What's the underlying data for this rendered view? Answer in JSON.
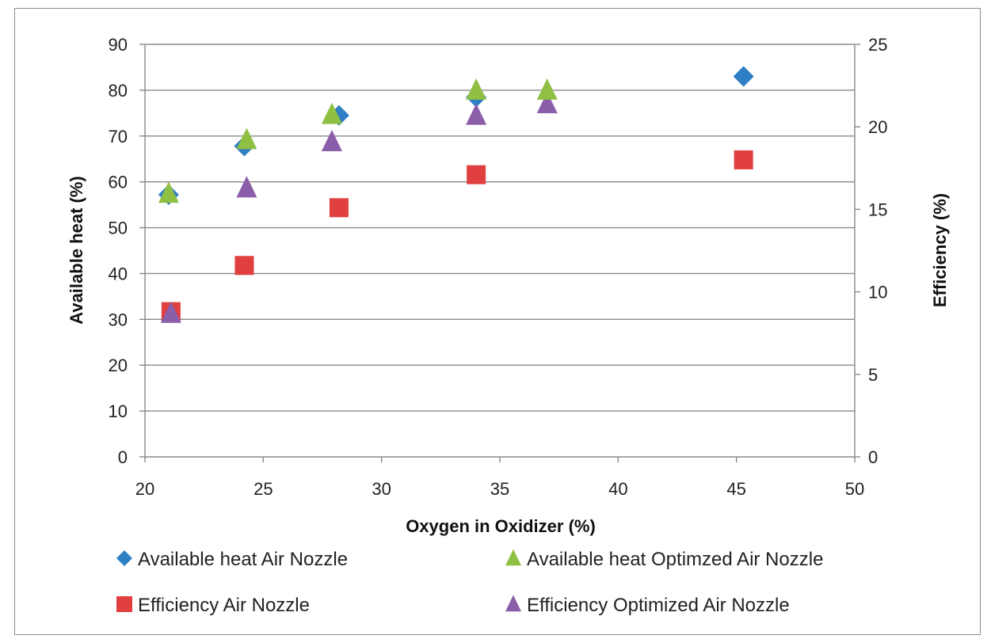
{
  "chart_data": {
    "type": "scatter",
    "title": "",
    "xlabel": "Oxygen in Oxidizer (%)",
    "ylabel": "Available heat (%)",
    "y2label": "Efficiency (%)",
    "xlim": [
      20,
      50
    ],
    "ylim": [
      0,
      90
    ],
    "y2lim": [
      0,
      25
    ],
    "xticks": [
      "20",
      "25",
      "30",
      "35",
      "40",
      "45",
      "50"
    ],
    "yticks": [
      "0",
      "10",
      "20",
      "30",
      "40",
      "50",
      "60",
      "70",
      "80",
      "90"
    ],
    "y2ticks": [
      "0",
      "5",
      "10",
      "15",
      "20",
      "25"
    ],
    "grid": true,
    "legend_position": "bottom",
    "series": [
      {
        "name": "Available heat Air Nozzle",
        "axis": "left",
        "marker": "diamond",
        "color": "#2e7fc4",
        "x": [
          21,
          24.2,
          28.2,
          34,
          45.3
        ],
        "y": [
          57.2,
          67.8,
          74.5,
          78.5,
          83
        ]
      },
      {
        "name": "Available heat Optimzed Air Nozzle",
        "axis": "left",
        "marker": "triangle",
        "color": "#8fc044",
        "x": [
          21,
          24.3,
          27.9,
          34,
          37
        ],
        "y": [
          57.5,
          69.2,
          74.7,
          80,
          80
        ]
      },
      {
        "name": "Efficiency Air Nozzle",
        "axis": "right",
        "marker": "square",
        "color": "#e04040",
        "x": [
          21.1,
          24.2,
          28.2,
          34,
          45.3
        ],
        "y": [
          8.8,
          11.6,
          15.1,
          17.1,
          18
        ]
      },
      {
        "name": "Efficiency Optimized Air Nozzle",
        "axis": "right",
        "marker": "triangle",
        "color": "#8a5ea8",
        "x": [
          21.1,
          24.3,
          27.9,
          34,
          37
        ],
        "y": [
          8.7,
          16.3,
          19.1,
          20.7,
          21.4
        ]
      }
    ]
  }
}
